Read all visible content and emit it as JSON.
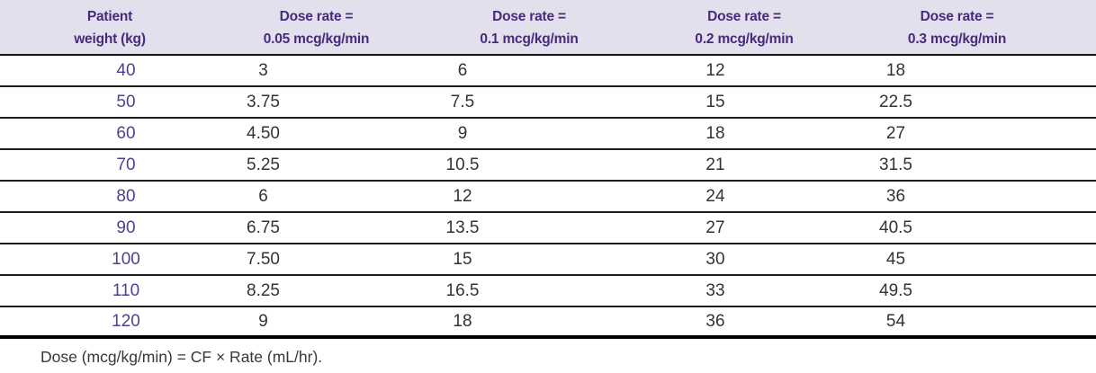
{
  "table": {
    "columns": [
      {
        "line1": "Patient",
        "line2": "weight (kg)"
      },
      {
        "line1": "Dose rate =",
        "line2": "0.05 mcg/kg/min"
      },
      {
        "line1": "Dose rate =",
        "line2": "0.1 mcg/kg/min"
      },
      {
        "line1": "Dose rate =",
        "line2": "0.2 mcg/kg/min"
      },
      {
        "line1": "Dose rate =",
        "line2": "0.3 mcg/kg/min"
      }
    ],
    "rows": [
      {
        "weight": "40",
        "doses": [
          "3",
          "6",
          "12",
          "18"
        ]
      },
      {
        "weight": "50",
        "doses": [
          "3.75",
          "7.5",
          "15",
          "22.5"
        ]
      },
      {
        "weight": "60",
        "doses": [
          "4.50",
          "9",
          "18",
          "27"
        ]
      },
      {
        "weight": "70",
        "doses": [
          "5.25",
          "10.5",
          "21",
          "31.5"
        ]
      },
      {
        "weight": "80",
        "doses": [
          "6",
          "12",
          "24",
          "36"
        ]
      },
      {
        "weight": "90",
        "doses": [
          "6.75",
          "13.5",
          "27",
          "40.5"
        ]
      },
      {
        "weight": "100",
        "doses": [
          "7.50",
          "15",
          "30",
          "45"
        ]
      },
      {
        "weight": "110",
        "doses": [
          "8.25",
          "16.5",
          "33",
          "49.5"
        ]
      },
      {
        "weight": "120",
        "doses": [
          "9",
          "18",
          "36",
          "54"
        ]
      }
    ],
    "footnote": "Dose (mcg/kg/min) = CF × Rate (mL/hr)."
  },
  "colors": {
    "header_background": "#e3e0ee",
    "header_text": "#482a7c",
    "weight_text": "#504095",
    "value_text": "#333333",
    "row_rule": "#1e1e1e",
    "bottom_rule": "#000000"
  }
}
